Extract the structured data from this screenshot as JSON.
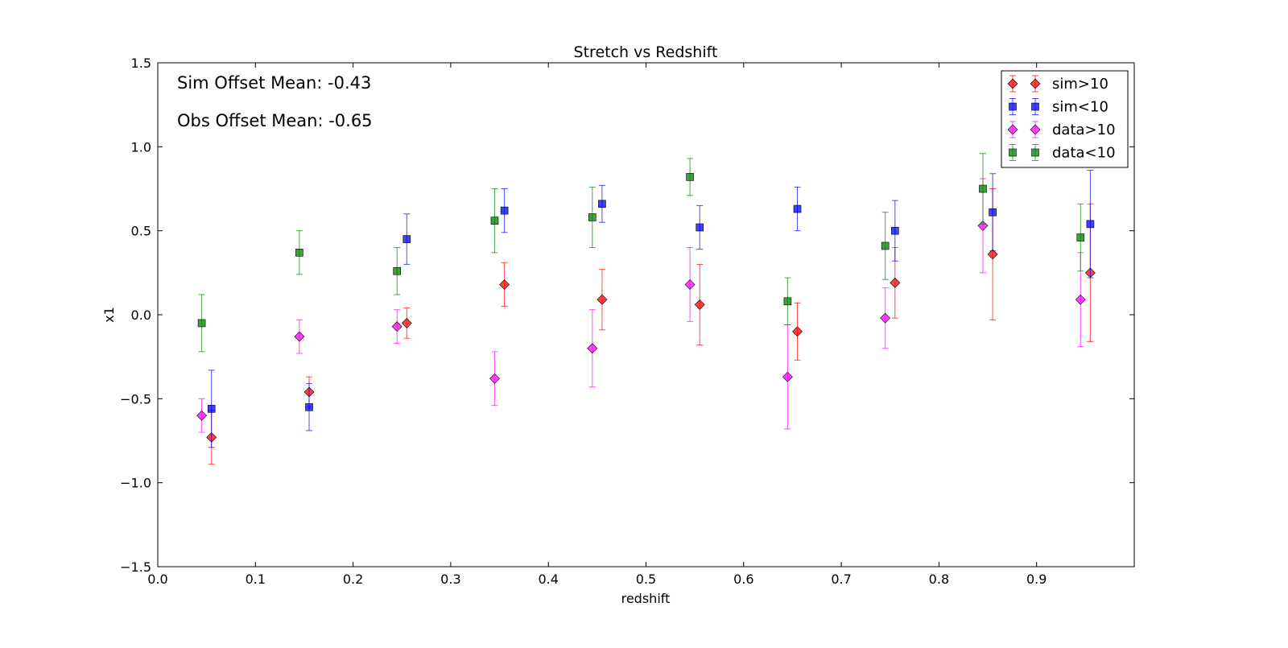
{
  "chart_data": {
    "type": "scatter",
    "title": "Stretch vs Redshift",
    "xlabel": "redshift",
    "ylabel": "x1",
    "xlim": [
      0.0,
      1.0
    ],
    "ylim": [
      -1.5,
      1.5
    ],
    "xticks": [
      0.0,
      0.1,
      0.2,
      0.3,
      0.4,
      0.5,
      0.6,
      0.7,
      0.8,
      0.9
    ],
    "xtick_labels": [
      "0.0",
      "0.1",
      "0.2",
      "0.3",
      "0.4",
      "0.5",
      "0.6",
      "0.7",
      "0.8",
      "0.9"
    ],
    "yticks": [
      -1.5,
      -1.0,
      -0.5,
      0.0,
      0.5,
      1.0,
      1.5
    ],
    "ytick_labels": [
      "−1.5",
      "−1.0",
      "−0.5",
      "0.0",
      "0.5",
      "1.0",
      "1.5"
    ],
    "grid": false,
    "legend_position": "top-right",
    "annotations": [
      "Sim Offset Mean: -0.43",
      "Obs Offset Mean: -0.65"
    ],
    "series": [
      {
        "name": "sim>10",
        "marker": "diamond",
        "color": "#ff0000",
        "x": [
          0.055,
          0.155,
          0.255,
          0.355,
          0.455,
          0.555,
          0.655,
          0.755,
          0.855,
          0.955
        ],
        "y": [
          -0.73,
          -0.46,
          -0.05,
          0.18,
          0.09,
          0.06,
          -0.1,
          0.19,
          0.36,
          0.25
        ],
        "yerr": [
          0.16,
          0.09,
          0.09,
          0.13,
          0.18,
          0.24,
          0.17,
          0.21,
          0.39,
          0.41
        ]
      },
      {
        "name": "sim<10",
        "marker": "square",
        "color": "#0000ff",
        "x": [
          0.055,
          0.155,
          0.255,
          0.355,
          0.455,
          0.555,
          0.655,
          0.755,
          0.855,
          0.955
        ],
        "y": [
          -0.56,
          -0.55,
          0.45,
          0.62,
          0.66,
          0.52,
          0.63,
          0.5,
          0.61,
          0.54
        ],
        "yerr": [
          0.23,
          0.14,
          0.15,
          0.13,
          0.11,
          0.13,
          0.13,
          0.18,
          0.23,
          0.32
        ]
      },
      {
        "name": "data>10",
        "marker": "diamond",
        "color": "#ff00ff",
        "x": [
          0.045,
          0.145,
          0.245,
          0.345,
          0.445,
          0.545,
          0.645,
          0.745,
          0.845,
          0.945
        ],
        "y": [
          -0.6,
          -0.13,
          -0.07,
          -0.38,
          -0.2,
          0.18,
          -0.37,
          -0.02,
          0.53,
          0.09
        ],
        "yerr": [
          0.1,
          0.1,
          0.1,
          0.16,
          0.23,
          0.22,
          0.31,
          0.18,
          0.28,
          0.28
        ]
      },
      {
        "name": "data<10",
        "marker": "square",
        "color": "#008000",
        "x": [
          0.045,
          0.145,
          0.245,
          0.345,
          0.445,
          0.545,
          0.645,
          0.745,
          0.845,
          0.945
        ],
        "y": [
          -0.05,
          0.37,
          0.26,
          0.56,
          0.58,
          0.82,
          0.08,
          0.41,
          0.75,
          0.46
        ],
        "yerr": [
          0.17,
          0.13,
          0.14,
          0.19,
          0.18,
          0.11,
          0.14,
          0.2,
          0.21,
          0.2
        ]
      }
    ]
  }
}
